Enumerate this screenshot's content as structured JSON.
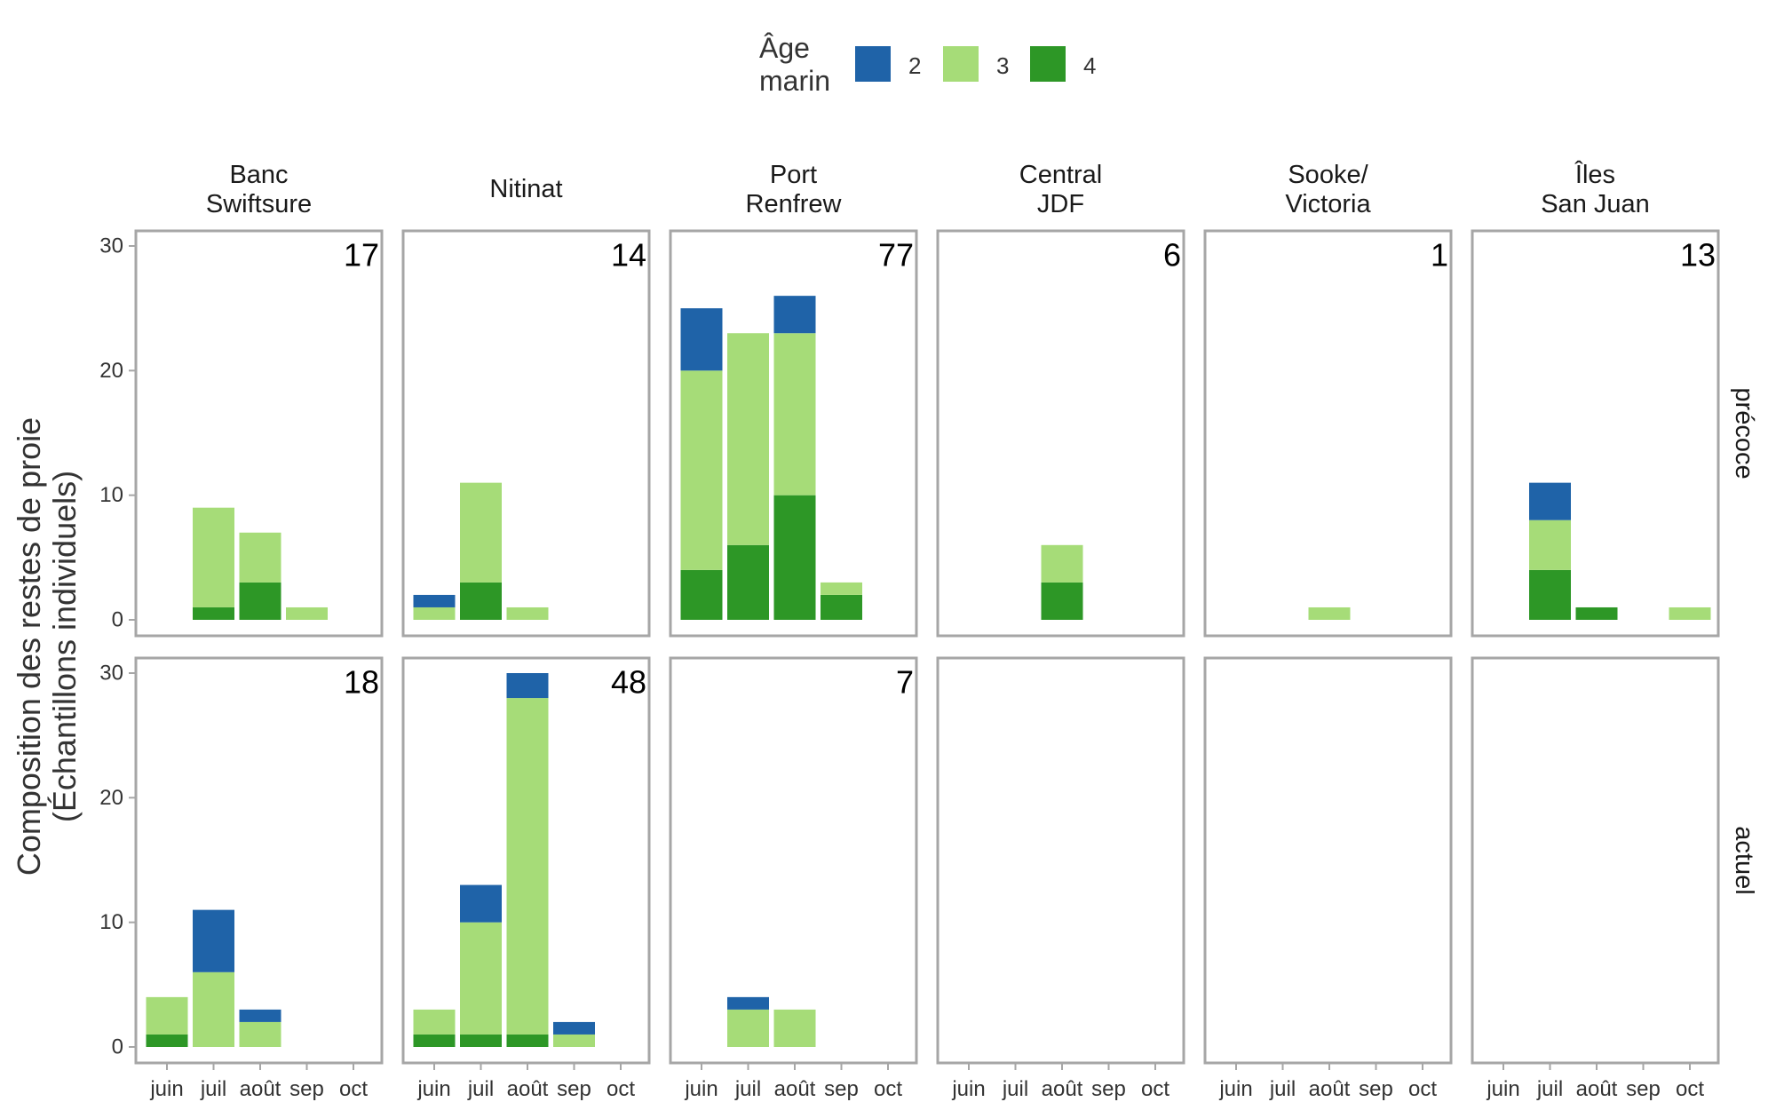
{
  "chart_data": {
    "type": "bar",
    "stacked": true,
    "ylabel": "Composition des restes de proie\n(Échantillons individuels)",
    "ylim": [
      0,
      30
    ],
    "yticks": [
      0,
      10,
      20,
      30
    ],
    "grid": false,
    "legend": {
      "title": "Âge\nmarin",
      "placement": "top",
      "entries": [
        {
          "name": "2",
          "color": "#1f63a8"
        },
        {
          "name": "3",
          "color": "#a6dc78"
        },
        {
          "name": "4",
          "color": "#2d9726"
        }
      ]
    },
    "stack_order": [
      "4",
      "3",
      "2"
    ],
    "categories": [
      "juin",
      "juil",
      "août",
      "sep",
      "oct"
    ],
    "columns": [
      "Banc\nSwiftsure",
      "Nitinat",
      "Port\nRenfrew",
      "Central\nJDF",
      "Sooke/\nVictoria",
      "Îles\nSan Juan"
    ],
    "rows": [
      "précoce",
      "actuel"
    ],
    "panels": [
      {
        "column": "Banc\nSwiftsure",
        "row": "précoce",
        "n": "17",
        "series": [
          {
            "name": "2",
            "values": [
              0,
              0,
              0,
              0,
              0
            ]
          },
          {
            "name": "3",
            "values": [
              0,
              8,
              4,
              1,
              0
            ]
          },
          {
            "name": "4",
            "values": [
              0,
              1,
              3,
              0,
              0
            ]
          }
        ]
      },
      {
        "column": "Nitinat",
        "row": "précoce",
        "n": "14",
        "series": [
          {
            "name": "2",
            "values": [
              1,
              0,
              0,
              0,
              0
            ]
          },
          {
            "name": "3",
            "values": [
              1,
              8,
              1,
              0,
              0
            ]
          },
          {
            "name": "4",
            "values": [
              0,
              3,
              0,
              0,
              0
            ]
          }
        ]
      },
      {
        "column": "Port\nRenfrew",
        "row": "précoce",
        "n": "77",
        "series": [
          {
            "name": "2",
            "values": [
              5,
              0,
              3,
              0,
              0
            ]
          },
          {
            "name": "3",
            "values": [
              16,
              17,
              13,
              1,
              0
            ]
          },
          {
            "name": "4",
            "values": [
              4,
              6,
              10,
              2,
              0
            ]
          }
        ]
      },
      {
        "column": "Central\nJDF",
        "row": "précoce",
        "n": "6",
        "series": [
          {
            "name": "2",
            "values": [
              0,
              0,
              0,
              0,
              0
            ]
          },
          {
            "name": "3",
            "values": [
              0,
              0,
              3,
              0,
              0
            ]
          },
          {
            "name": "4",
            "values": [
              0,
              0,
              3,
              0,
              0
            ]
          }
        ]
      },
      {
        "column": "Sooke/\nVictoria",
        "row": "précoce",
        "n": "1",
        "series": [
          {
            "name": "2",
            "values": [
              0,
              0,
              0,
              0,
              0
            ]
          },
          {
            "name": "3",
            "values": [
              0,
              0,
              1,
              0,
              0
            ]
          },
          {
            "name": "4",
            "values": [
              0,
              0,
              0,
              0,
              0
            ]
          }
        ]
      },
      {
        "column": "Îles\nSan Juan",
        "row": "précoce",
        "n": "13",
        "series": [
          {
            "name": "2",
            "values": [
              0,
              3,
              0,
              0,
              0
            ]
          },
          {
            "name": "3",
            "values": [
              0,
              4,
              0,
              0,
              1
            ]
          },
          {
            "name": "4",
            "values": [
              0,
              4,
              1,
              0,
              0
            ]
          }
        ]
      },
      {
        "column": "Banc\nSwiftsure",
        "row": "actuel",
        "n": "18",
        "series": [
          {
            "name": "2",
            "values": [
              0,
              5,
              1,
              0,
              0
            ]
          },
          {
            "name": "3",
            "values": [
              3,
              6,
              2,
              0,
              0
            ]
          },
          {
            "name": "4",
            "values": [
              1,
              0,
              0,
              0,
              0
            ]
          }
        ]
      },
      {
        "column": "Nitinat",
        "row": "actuel",
        "n": "48",
        "series": [
          {
            "name": "2",
            "values": [
              0,
              3,
              2,
              1,
              0
            ]
          },
          {
            "name": "3",
            "values": [
              2,
              9,
              27,
              1,
              0
            ]
          },
          {
            "name": "4",
            "values": [
              1,
              1,
              1,
              0,
              0
            ]
          }
        ]
      },
      {
        "column": "Port\nRenfrew",
        "row": "actuel",
        "n": "7",
        "series": [
          {
            "name": "2",
            "values": [
              0,
              1,
              0,
              0,
              0
            ]
          },
          {
            "name": "3",
            "values": [
              0,
              3,
              3,
              0,
              0
            ]
          },
          {
            "name": "4",
            "values": [
              0,
              0,
              0,
              0,
              0
            ]
          }
        ]
      },
      {
        "column": "Central\nJDF",
        "row": "actuel",
        "n": "",
        "series": [
          {
            "name": "2",
            "values": [
              0,
              0,
              0,
              0,
              0
            ]
          },
          {
            "name": "3",
            "values": [
              0,
              0,
              0,
              0,
              0
            ]
          },
          {
            "name": "4",
            "values": [
              0,
              0,
              0,
              0,
              0
            ]
          }
        ]
      },
      {
        "column": "Sooke/\nVictoria",
        "row": "actuel",
        "n": "",
        "series": [
          {
            "name": "2",
            "values": [
              0,
              0,
              0,
              0,
              0
            ]
          },
          {
            "name": "3",
            "values": [
              0,
              0,
              0,
              0,
              0
            ]
          },
          {
            "name": "4",
            "values": [
              0,
              0,
              0,
              0,
              0
            ]
          }
        ]
      },
      {
        "column": "Îles\nSan Juan",
        "row": "actuel",
        "n": "",
        "series": [
          {
            "name": "2",
            "values": [
              0,
              0,
              0,
              0,
              0
            ]
          },
          {
            "name": "3",
            "values": [
              0,
              0,
              0,
              0,
              0
            ]
          },
          {
            "name": "4",
            "values": [
              0,
              0,
              0,
              0,
              0
            ]
          }
        ]
      }
    ]
  }
}
